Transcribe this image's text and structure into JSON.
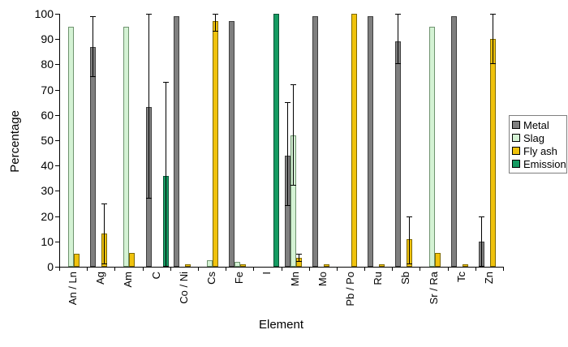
{
  "chart_data": {
    "type": "bar",
    "title": "",
    "xlabel": "Element",
    "ylabel": "Percentage",
    "ylim": [
      0,
      100
    ],
    "yticks": [
      0,
      10,
      20,
      30,
      40,
      50,
      60,
      70,
      80,
      90,
      100
    ],
    "grid": false,
    "legend_position": "right",
    "error_bars": true,
    "categories": [
      "An / Ln",
      "Ag",
      "Am",
      "C",
      "Co / Ni",
      "Cs",
      "Fe",
      "I",
      "Mn",
      "Mo",
      "Pb / Po",
      "Ru",
      "Sb",
      "Sr / Ra",
      "Tc",
      "Zn"
    ],
    "series": [
      {
        "name": "Metal",
        "fill": "#7f7f7f",
        "border": "#3f3f3f",
        "values": [
          null,
          87,
          null,
          63,
          99,
          null,
          97,
          null,
          44,
          99,
          null,
          99,
          89,
          null,
          99,
          10
        ],
        "err_low": [
          null,
          75,
          null,
          27,
          null,
          null,
          null,
          null,
          24,
          null,
          null,
          null,
          80,
          null,
          null,
          0
        ],
        "err_high": [
          null,
          99,
          null,
          100,
          null,
          null,
          null,
          null,
          65,
          null,
          null,
          null,
          100,
          null,
          null,
          20
        ]
      },
      {
        "name": "Slag",
        "fill": "#d4f2d4",
        "border": "#6f936f",
        "values": [
          95,
          null,
          95,
          null,
          null,
          2.5,
          2,
          null,
          52,
          null,
          null,
          null,
          null,
          95,
          null,
          null
        ],
        "err_low": [
          null,
          null,
          null,
          null,
          null,
          null,
          null,
          null,
          32,
          null,
          null,
          null,
          null,
          null,
          null,
          null
        ],
        "err_high": [
          null,
          null,
          null,
          null,
          null,
          null,
          null,
          null,
          72,
          null,
          null,
          null,
          null,
          null,
          null,
          null
        ]
      },
      {
        "name": "Fly ash",
        "fill": "#f0c20c",
        "border": "#7f6a00",
        "values": [
          5,
          13,
          5.5,
          null,
          1,
          97,
          1,
          null,
          3.5,
          1,
          100,
          1,
          11,
          5.5,
          1,
          90
        ],
        "err_low": [
          null,
          1,
          null,
          null,
          null,
          93,
          null,
          null,
          2,
          null,
          null,
          null,
          1,
          null,
          null,
          80
        ],
        "err_high": [
          null,
          25,
          null,
          null,
          null,
          100,
          null,
          null,
          5,
          null,
          null,
          null,
          20,
          null,
          null,
          100
        ]
      },
      {
        "name": "Emission",
        "fill": "#159b62",
        "border": "#0a5437",
        "values": [
          null,
          null,
          null,
          36,
          null,
          null,
          null,
          100,
          null,
          null,
          null,
          null,
          null,
          null,
          null,
          null
        ],
        "err_low": [
          null,
          null,
          null,
          0,
          null,
          null,
          null,
          null,
          null,
          null,
          null,
          null,
          null,
          null,
          null,
          null
        ],
        "err_high": [
          null,
          null,
          null,
          73,
          null,
          null,
          null,
          null,
          null,
          null,
          null,
          null,
          null,
          null,
          null,
          null
        ]
      }
    ]
  }
}
